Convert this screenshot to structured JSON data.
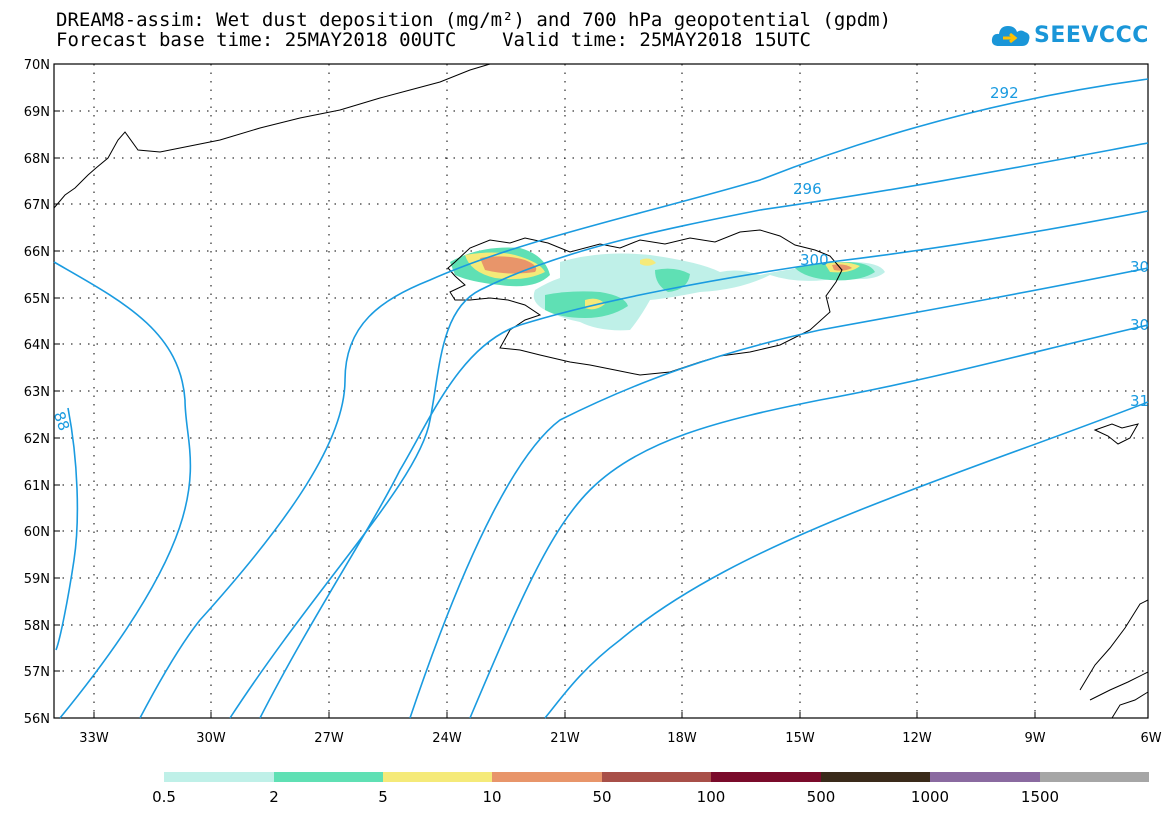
{
  "title": {
    "line1": "DREAM8-assim: Wet dust deposition (mg/m²) and 700 hPa geopotential (gpdm)",
    "line2": "Forecast base time: 25MAY2018 00UTC    Valid time: 25MAY2018 15UTC"
  },
  "logo": {
    "text": "SEEVCCC",
    "icon": "cloud-icon",
    "color": "#1a96d8"
  },
  "map": {
    "lon_range": [
      -34.2,
      -6
    ],
    "lat_range": [
      56,
      70
    ],
    "lat_labels": [
      "70N",
      "69N",
      "68N",
      "67N",
      "66N",
      "65N",
      "64N",
      "63N",
      "62N",
      "61N",
      "60N",
      "59N",
      "58N",
      "57N",
      "56N"
    ],
    "lon_labels": [
      "33W",
      "30W",
      "27W",
      "24W",
      "21W",
      "18W",
      "15W",
      "12W",
      "9W",
      "6W"
    ],
    "gridlines": true,
    "contour_color": "#1a9be0",
    "contour_labels": [
      "292",
      "296",
      "300",
      "30",
      "30",
      "31",
      "88"
    ]
  },
  "colorbar": {
    "colors": [
      "#bff0e8",
      "#5fe0b4",
      "#f5ea79",
      "#e8956a",
      "#a84f48",
      "#7a0a2a",
      "#3a2a1a",
      "#8a6aa0",
      "#a6a6a6"
    ],
    "labels": [
      "0.5",
      "2",
      "5",
      "10",
      "50",
      "100",
      "500",
      "1000",
      "1500"
    ]
  }
}
